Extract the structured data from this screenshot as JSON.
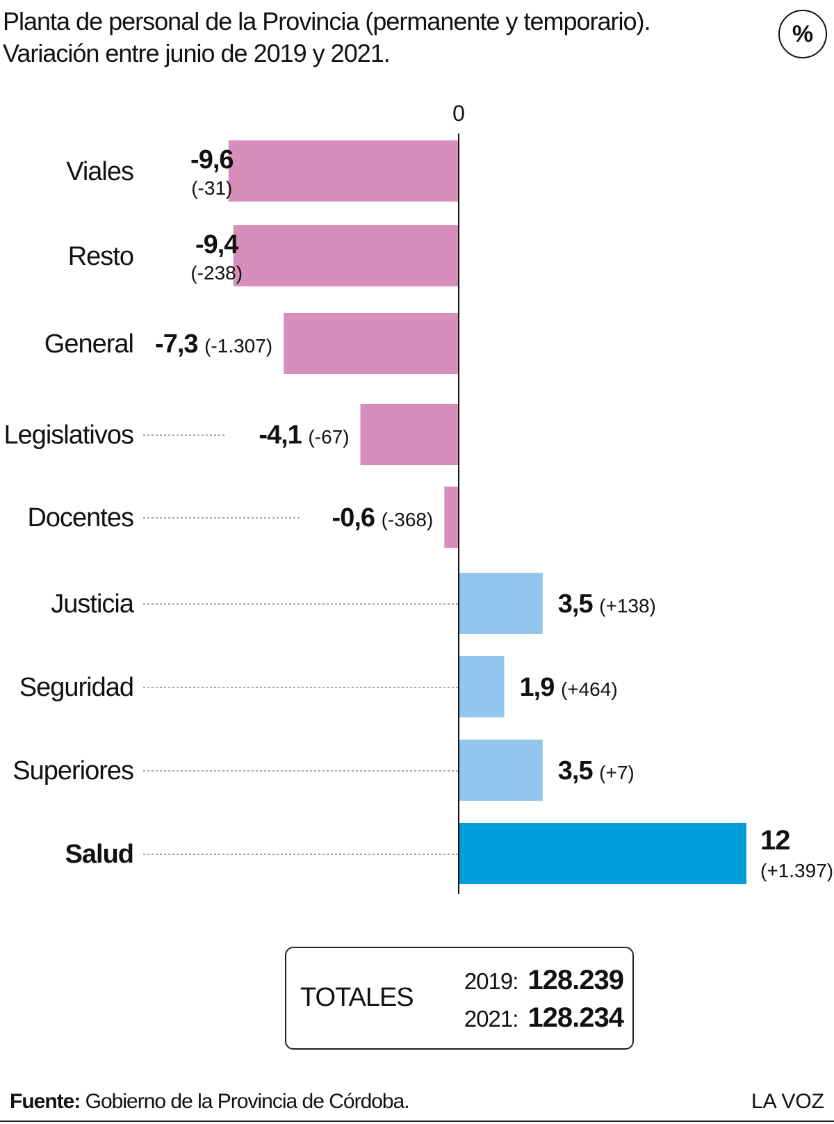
{
  "header": {
    "title_line1": "Planta de personal de la Provincia (permanente y temporario).",
    "title_line2": "Variación entre junio de 2019 y 2021.",
    "badge": "%"
  },
  "chart_data": {
    "type": "bar",
    "orientation": "horizontal",
    "title": "Planta de personal de la Provincia (permanente y temporario). Variación entre junio de 2019 y 2021.",
    "xlabel": "",
    "ylabel": "",
    "zero_label": "0",
    "grid": false,
    "categories": [
      "Viales",
      "Resto",
      "General",
      "Legislativos",
      "Docentes",
      "Justicia",
      "Seguridad",
      "Superiores",
      "Salud"
    ],
    "values": [
      -9.6,
      -9.4,
      -7.3,
      -4.1,
      -0.6,
      3.5,
      1.9,
      3.5,
      12
    ],
    "value_labels": [
      "-9,6",
      "-9,4",
      "-7,3",
      "-4,1",
      "-0,6",
      "3,5",
      "1,9",
      "3,5",
      "12"
    ],
    "change_labels": [
      "(-31)",
      "(-238)",
      "(-1.307)",
      "(-67)",
      "(-368)",
      "(+138)",
      "(+464)",
      "(+7)",
      "(+1.397)"
    ],
    "highlight": "Salud",
    "colors": {
      "negative": "#d68fba",
      "positive": "#93c6ec",
      "highlight": "#009ddd",
      "axis": "#111111",
      "leader": "#888888"
    }
  },
  "totals": {
    "label": "TOTALES",
    "rows": [
      {
        "year": "2019:",
        "value": "128.239"
      },
      {
        "year": "2021:",
        "value": "128.234"
      }
    ]
  },
  "footer": {
    "source_label": "Fuente:",
    "source_text": " Gobierno de la Provincia de Córdoba.",
    "brand": "LA VOZ"
  }
}
